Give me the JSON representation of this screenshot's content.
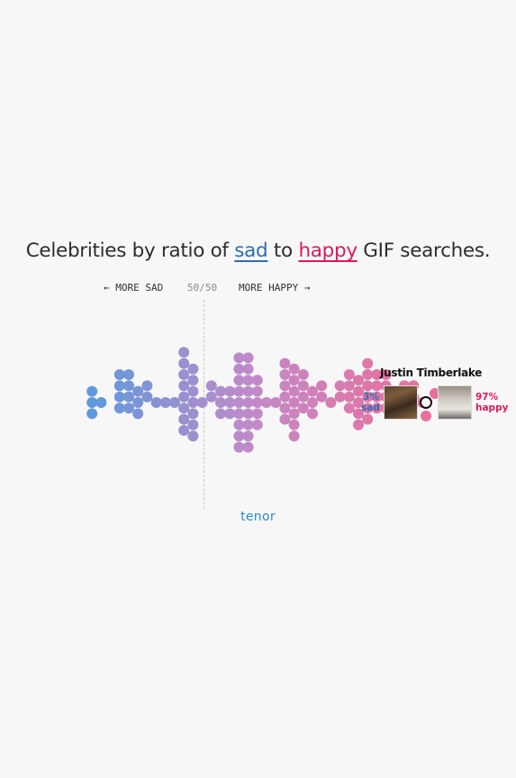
{
  "title": {
    "prefix": "Celebrities by ratio of ",
    "sad_word": "sad",
    "middle": " to ",
    "happy_word": "happy",
    "suffix": " GIF searches."
  },
  "axis": {
    "left_label": "← MORE SAD",
    "center_label": "50/50",
    "right_label": "MORE HAPPY →"
  },
  "highlight": {
    "name": "Justin Timberlake",
    "sad_pct": "3%",
    "sad_word": "sad",
    "happy_pct": "97%",
    "happy_word": "happy"
  },
  "brand": "tenor",
  "colors": {
    "sad": "#5a9bdc",
    "happy": "#ea6f9a",
    "highlight_ring": "#111111"
  },
  "chart_data": {
    "type": "scatter",
    "description_x": "share of happy searches (0 = all sad, 100 = all happy)",
    "xlim": [
      0,
      100
    ],
    "title": "Celebrities by ratio of sad to happy GIF searches.",
    "highlight_point": {
      "label": "Justin Timberlake",
      "happy_pct": 97
    },
    "columns": [
      {
        "x": 2,
        "count": 3
      },
      {
        "x": 4,
        "count": 1
      },
      {
        "x": 8,
        "count": 4
      },
      {
        "x": 10,
        "count": 4
      },
      {
        "x": 12,
        "count": 3
      },
      {
        "x": 14,
        "count": 2
      },
      {
        "x": 16,
        "count": 1
      },
      {
        "x": 18,
        "count": 1
      },
      {
        "x": 20,
        "count": 1
      },
      {
        "x": 22,
        "count": 8
      },
      {
        "x": 24,
        "count": 7
      },
      {
        "x": 26,
        "count": 1
      },
      {
        "x": 28,
        "count": 2
      },
      {
        "x": 30,
        "count": 3
      },
      {
        "x": 32,
        "count": 3
      },
      {
        "x": 34,
        "count": 9
      },
      {
        "x": 36,
        "count": 9
      },
      {
        "x": 38,
        "count": 5
      },
      {
        "x": 40,
        "count": 1
      },
      {
        "x": 42,
        "count": 1
      },
      {
        "x": 44,
        "count": 6
      },
      {
        "x": 46,
        "count": 7
      },
      {
        "x": 48,
        "count": 4
      },
      {
        "x": 50,
        "count": 3
      },
      {
        "x": 52,
        "count": 2
      },
      {
        "x": 54,
        "count": 1
      },
      {
        "x": 56,
        "count": 2
      },
      {
        "x": 58,
        "count": 4
      },
      {
        "x": 60,
        "count": 5
      },
      {
        "x": 62,
        "count": 6
      },
      {
        "x": 64,
        "count": 4
      },
      {
        "x": 66,
        "count": 4
      },
      {
        "x": 68,
        "count": 1
      },
      {
        "x": 70,
        "count": 2
      },
      {
        "x": 72,
        "count": 2
      },
      {
        "x": 74,
        "count": 1
      }
    ]
  }
}
